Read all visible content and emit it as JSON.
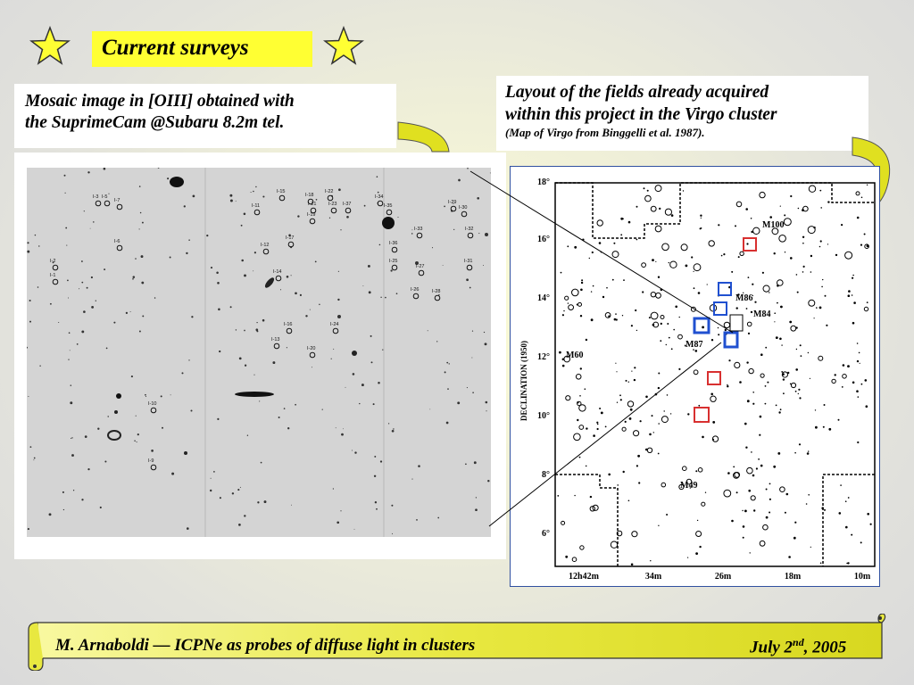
{
  "header": {
    "title": "Current surveys",
    "left_icon": "star-icon",
    "right_icon": "star-icon"
  },
  "left_caption": {
    "line1": "Mosaic image in [OIII] obtained with",
    "line2": "the SuprimeCam @Subaru  8.2m tel."
  },
  "right_caption": {
    "line1": "Layout of the fields already acquired",
    "line2": "within this project in the Virgo cluster",
    "line3": "(Map of Virgo from Binggelli et al. 1987)."
  },
  "mosaic": {
    "labels": [
      "I-5",
      "I-3",
      "I-7",
      "I-6",
      "I-2",
      "I-1",
      "I-15",
      "I-18",
      "I-22",
      "I-11",
      "I-21",
      "I-23",
      "I-37",
      "I-34",
      "I-35",
      "I-19",
      "I-29",
      "I-30",
      "I-33",
      "I-32",
      "I-17",
      "I-12",
      "I-36",
      "I-25",
      "I-31",
      "I-27",
      "I-14",
      "I-26",
      "I-28",
      "I-16",
      "I-24",
      "I-13",
      "I-20",
      "I-10",
      "I-9"
    ]
  },
  "virgo_map": {
    "y_axis_label": "DECLINATION (1950)",
    "y_ticks": [
      "18°",
      "16°",
      "14°",
      "12°",
      "10°",
      "8°",
      "6°"
    ],
    "x_ticks": [
      "12h42m",
      "34m",
      "26m",
      "18m",
      "10m"
    ],
    "galaxy_labels": [
      "M100",
      "M86",
      "M84",
      "M87",
      "M60",
      "M49"
    ]
  },
  "colors": {
    "title_bg": "#ffff33",
    "star": "#ffff33",
    "field_red": "#d83030",
    "field_blue": "#2050d0",
    "scroll": "#d8d820"
  },
  "footer": {
    "left_text": "M. Arnaboldi — ICPNe as probes of diffuse light in clusters",
    "date_prefix": "July 2",
    "date_sup": "nd",
    "date_suffix": ", 2005"
  }
}
